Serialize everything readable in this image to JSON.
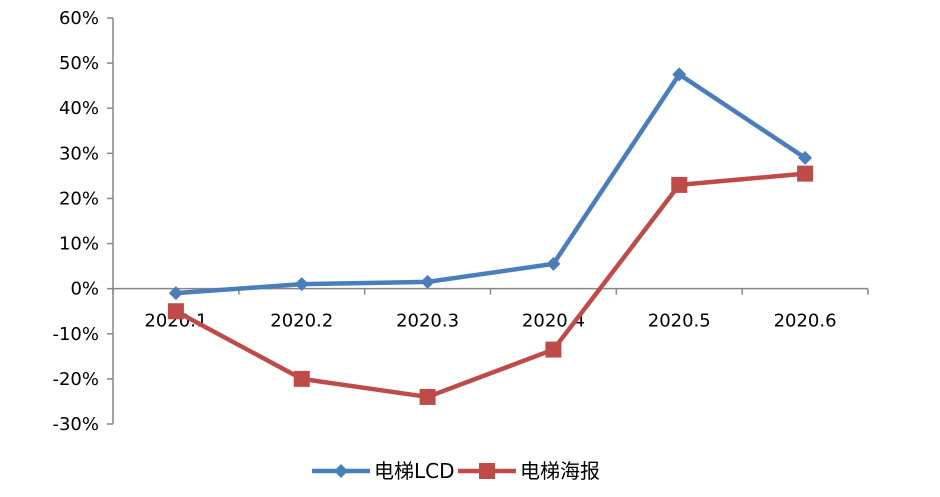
{
  "chart_data": {
    "type": "line",
    "categories": [
      "2020.1",
      "2020.2",
      "2020.3",
      "2020.4",
      "2020.5",
      "2020.6"
    ],
    "yticks": [
      "60%",
      "50%",
      "40%",
      "30%",
      "20%",
      "10%",
      "0%",
      "-10%",
      "-20%",
      "-30%"
    ],
    "ylim": [
      -30,
      60
    ],
    "ytick_step": 10,
    "y_unit": "%",
    "grid": false,
    "legend_position": "bottom",
    "series": [
      {
        "name": "电梯LCD",
        "values": [
          -1,
          1,
          1.5,
          5.5,
          47.5,
          29
        ],
        "color": "#4a7ebb",
        "marker": "diamond"
      },
      {
        "name": "电梯海报",
        "values": [
          -5,
          -20,
          -24,
          -13.5,
          23,
          25.5
        ],
        "color": "#be4b48",
        "marker": "square"
      }
    ]
  }
}
